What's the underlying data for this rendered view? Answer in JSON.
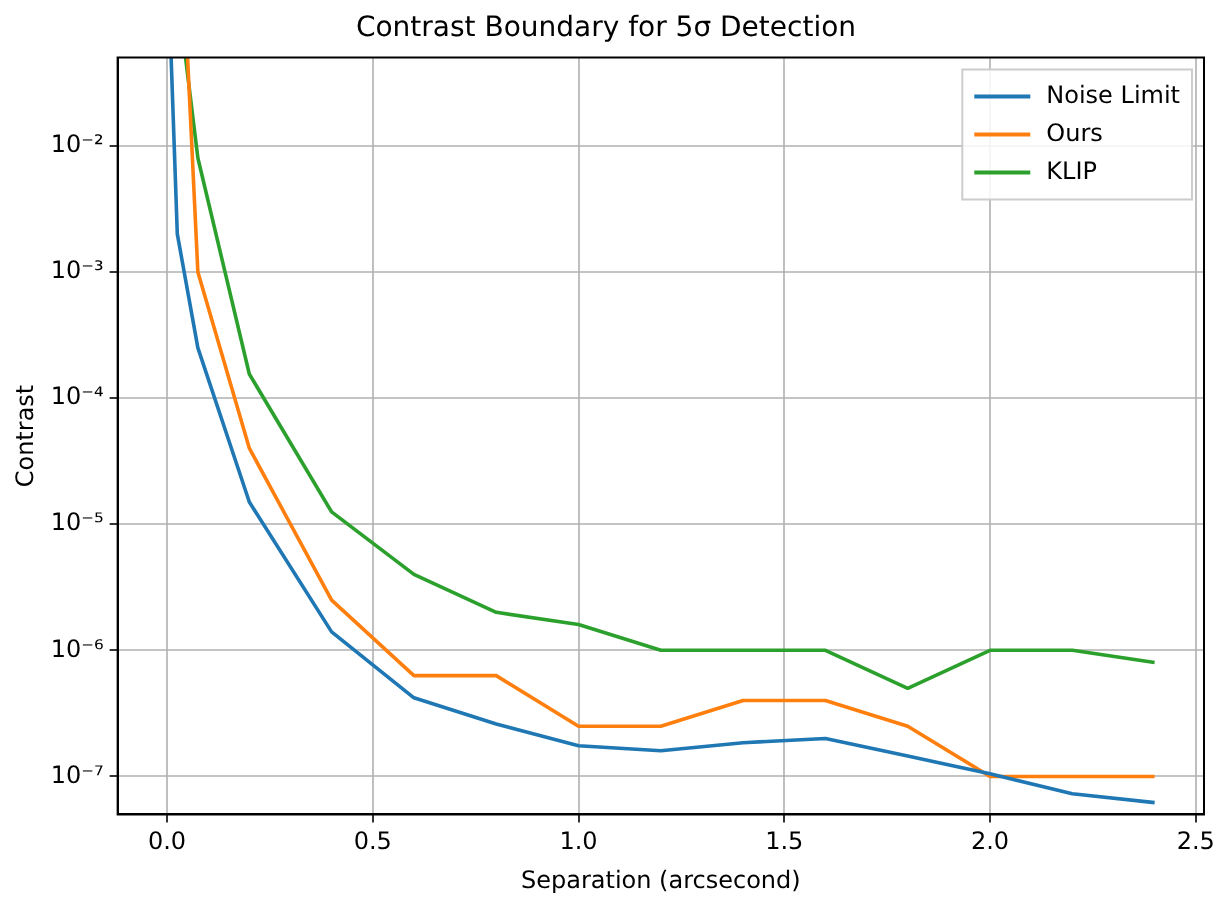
{
  "chart_data": {
    "type": "line",
    "title": "Contrast Boundary for 5σ Detection",
    "xlabel": "Separation (arcsecond)",
    "ylabel": "Contrast",
    "series": [
      {
        "name": "Noise Limit",
        "color": "#1f77b4",
        "x": [
          0.01,
          0.025,
          0.075,
          0.2,
          0.4,
          0.6,
          0.8,
          1.0,
          1.2,
          1.4,
          1.6,
          1.8,
          2.0,
          2.2,
          2.4
        ],
        "values": [
          0.05,
          0.002,
          0.00025,
          1.5e-05,
          1.4e-06,
          4.2e-07,
          2.6e-07,
          1.75e-07,
          1.6e-07,
          1.85e-07,
          2e-07,
          1.45e-07,
          1.05e-07,
          7.3e-08,
          6.2e-08
        ]
      },
      {
        "name": "Ours",
        "color": "#ff7f0e",
        "x": [
          0.05,
          0.075,
          0.2,
          0.4,
          0.6,
          0.8,
          1.0,
          1.2,
          1.4,
          1.6,
          1.8,
          2.0,
          2.2,
          2.4
        ],
        "values": [
          0.05,
          0.001,
          4e-05,
          2.5e-06,
          6.3e-07,
          6.3e-07,
          2.5e-07,
          2.5e-07,
          4e-07,
          4e-07,
          2.5e-07,
          1e-07,
          1e-07,
          1e-07
        ]
      },
      {
        "name": "KLIP",
        "color": "#2ca02c",
        "x": [
          0.045,
          0.075,
          0.2,
          0.4,
          0.6,
          0.8,
          1.0,
          1.2,
          1.4,
          1.6,
          1.8,
          2.0,
          2.2,
          2.4
        ],
        "values": [
          0.05,
          0.008,
          0.000155,
          1.25e-05,
          4e-06,
          2e-06,
          1.6e-06,
          1e-06,
          1e-06,
          1e-06,
          5e-07,
          1e-06,
          1e-06,
          8e-07
        ]
      }
    ],
    "xlim": [
      -0.12,
      2.52
    ],
    "xticks": [
      {
        "value": 0,
        "label": "0.0"
      },
      0.5,
      {
        "value": 1,
        "label": "1.0"
      },
      1.5,
      {
        "value": 2,
        "label": "2.0"
      },
      2.5
    ],
    "ylim": [
      5e-08,
      0.05
    ],
    "yticks": [
      {
        "value": 1e-07,
        "label": "10⁻⁷"
      },
      {
        "value": 1e-06,
        "label": "10⁻⁶"
      },
      {
        "value": 1e-05,
        "label": "10⁻⁵"
      },
      {
        "value": 0.0001,
        "label": "10⁻⁴"
      },
      {
        "value": 0.001,
        "label": "10⁻³"
      },
      {
        "value": 0.01,
        "label": "10⁻²"
      }
    ],
    "log": "y",
    "grid": true,
    "legend": "top right",
    "marker": "none",
    "line_style": "solid"
  }
}
